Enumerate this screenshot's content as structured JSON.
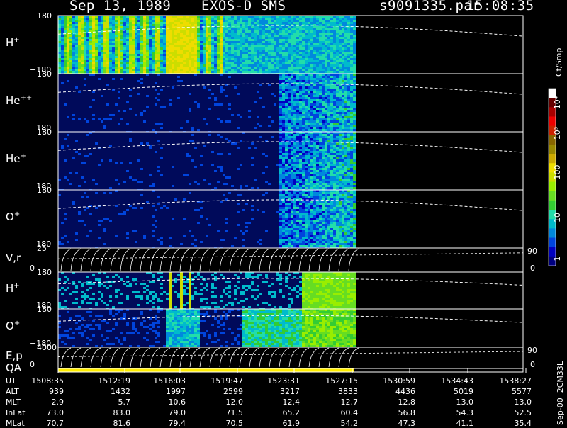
{
  "header": {
    "date": "Sep 13, 1989",
    "instrument": "EXOS-D SMS",
    "file": "s9091335.par",
    "time": "15:08:35"
  },
  "colorbar": {
    "unit": "Ct/Smp",
    "ticks": [
      {
        "label": "10⁴",
        "value": 10000
      },
      {
        "label": "10³",
        "value": 1000
      },
      {
        "label": "100",
        "value": 100
      },
      {
        "label": "10",
        "value": 10
      },
      {
        "label": "1",
        "value": 1
      }
    ],
    "colors": [
      "#000080",
      "#0000c0",
      "#0044dd",
      "#0088dd",
      "#00bbcc",
      "#22ddaa",
      "#33cc33",
      "#66dd22",
      "#99ee00",
      "#ccdd00",
      "#eedd00",
      "#ccaa00",
      "#998800",
      "#886600",
      "#cc2200",
      "#ee0000",
      "#aa0000",
      "#660000",
      "#ffffff"
    ]
  },
  "panels": [
    {
      "id": "h-plus",
      "label": "H",
      "sup": "+",
      "ymax": "180",
      "ymin": "−180",
      "type": "spectrogram"
    },
    {
      "id": "he-plusplus",
      "label": "He",
      "sup": "++",
      "ymax": "180",
      "ymin": "−180",
      "type": "spectrogram"
    },
    {
      "id": "he-plus",
      "label": "He",
      "sup": "+",
      "ymax": "180",
      "ymin": "−180",
      "type": "spectrogram"
    },
    {
      "id": "o-plus",
      "label": "O",
      "sup": "+",
      "ymax": "180",
      "ymin": "−180",
      "type": "spectrogram"
    },
    {
      "id": "v-r",
      "label": "V,r",
      "sup": "",
      "ymax": "25",
      "ymin": "0",
      "rmax": "90",
      "rmin": "0",
      "type": "line"
    },
    {
      "id": "h-plus-2",
      "label": "H",
      "sup": "+",
      "ymax": "180",
      "ymin": "−180",
      "type": "spectrogram"
    },
    {
      "id": "o-plus-2",
      "label": "O",
      "sup": "+",
      "ymax": "180",
      "ymin": "−180",
      "type": "spectrogram"
    },
    {
      "id": "e-p",
      "label": "E,p",
      "sup": "",
      "ymax": "4000",
      "ymin": "0",
      "rmax": "90",
      "rmin": "0",
      "type": "line"
    }
  ],
  "qa_label": "QA",
  "side_label": "Sep-00  2CM33L",
  "chart_data": {
    "type": "heatmap",
    "xlabel": "UT",
    "x_ticks": [
      "1508:35",
      "1512:19",
      "1516:03",
      "1519:47",
      "1523:31",
      "1527:15",
      "1530:59",
      "1534:43",
      "1538:27"
    ],
    "data_end": "1527:15",
    "ephemeris": [
      {
        "name": "UT",
        "values": [
          "1508:35",
          "1512:19",
          "1516:03",
          "1519:47",
          "1523:31",
          "1527:15",
          "1530:59",
          "1534:43",
          "1538:27"
        ]
      },
      {
        "name": "ALT",
        "values": [
          "939",
          "1432",
          "1997",
          "2599",
          "3217",
          "3833",
          "4436",
          "5019",
          "5577"
        ]
      },
      {
        "name": "MLT",
        "values": [
          "2.9",
          "5.7",
          "10.6",
          "12.0",
          "12.4",
          "12.7",
          "12.8",
          "13.0",
          "13.0"
        ]
      },
      {
        "name": "InLat",
        "values": [
          "73.0",
          "83.0",
          "79.0",
          "71.5",
          "65.2",
          "60.4",
          "56.8",
          "54.3",
          "52.5"
        ]
      },
      {
        "name": "MLat",
        "values": [
          "70.7",
          "81.6",
          "79.4",
          "70.5",
          "61.9",
          "54.2",
          "47.3",
          "41.1",
          "35.4"
        ]
      }
    ]
  }
}
